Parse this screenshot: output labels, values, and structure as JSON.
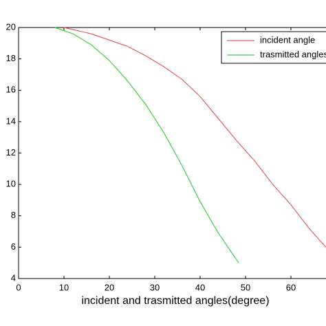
{
  "chart_data": {
    "type": "line",
    "x_label": "incident and trasmitted angles(degree)",
    "xlim": [
      0,
      68
    ],
    "xticks": [
      0,
      10,
      20,
      30,
      40,
      50,
      60
    ],
    "ylim": [
      4,
      20
    ],
    "yticks": [
      4,
      6,
      8,
      10,
      12,
      14,
      16,
      18,
      20
    ],
    "legend": "upper right",
    "series": [
      {
        "name": "incident angle",
        "color": "#e06060",
        "x": [
          10,
          16,
          20,
          24,
          28,
          32,
          36,
          40,
          44,
          48,
          52,
          56,
          60,
          64,
          68
        ],
        "values": [
          20,
          19.6,
          19.2,
          18.8,
          18.2,
          17.5,
          16.7,
          15.6,
          14.2,
          12.8,
          11.5,
          10.0,
          8.7,
          7.2,
          5.9
        ]
      },
      {
        "name": "trasmitted angles",
        "color": "#40d040",
        "x": [
          8,
          12,
          16,
          20,
          24,
          28,
          32,
          36,
          40,
          44,
          48.5
        ],
        "values": [
          20,
          19.6,
          18.9,
          17.9,
          16.6,
          15.1,
          13.3,
          11.2,
          8.9,
          6.9,
          5.0
        ]
      }
    ]
  }
}
